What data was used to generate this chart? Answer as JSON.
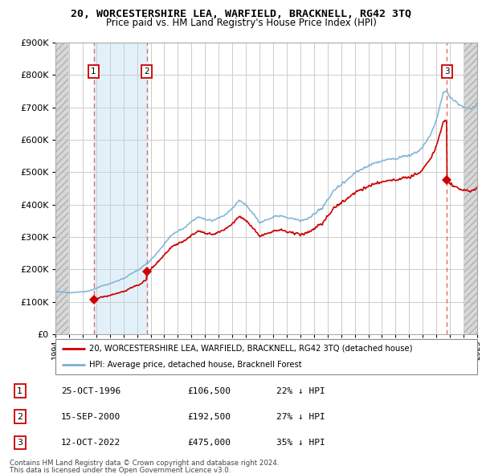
{
  "title": "20, WORCESTERSHIRE LEA, WARFIELD, BRACKNELL, RG42 3TQ",
  "subtitle": "Price paid vs. HM Land Registry's House Price Index (HPI)",
  "xlim": [
    1994.0,
    2025.0
  ],
  "ylim": [
    0,
    900000
  ],
  "yticks": [
    0,
    100000,
    200000,
    300000,
    400000,
    500000,
    600000,
    700000,
    800000,
    900000
  ],
  "sale_dates": [
    1996.81,
    2000.71,
    2022.78
  ],
  "sale_prices": [
    106500,
    192500,
    475000
  ],
  "sale_labels": [
    "1",
    "2",
    "3"
  ],
  "hpi_color": "#7ab0d4",
  "price_color": "#cc0000",
  "dashed_color": "#e05050",
  "legend_line1": "20, WORCESTERSHIRE LEA, WARFIELD, BRACKNELL, RG42 3TQ (detached house)",
  "legend_line2": "HPI: Average price, detached house, Bracknell Forest",
  "transactions": [
    {
      "label": "1",
      "date": "25-OCT-1996",
      "price": "£106,500",
      "hpi": "22% ↓ HPI"
    },
    {
      "label": "2",
      "date": "15-SEP-2000",
      "price": "£192,500",
      "hpi": "27% ↓ HPI"
    },
    {
      "label": "3",
      "date": "12-OCT-2022",
      "price": "£475,000",
      "hpi": "35% ↓ HPI"
    }
  ],
  "footnote1": "Contains HM Land Registry data © Crown copyright and database right 2024.",
  "footnote2": "This data is licensed under the Open Government Licence v3.0.",
  "hpi_anchors": [
    [
      1994.0,
      131000
    ],
    [
      1994.5,
      130000
    ],
    [
      1995.0,
      128000
    ],
    [
      1995.5,
      129000
    ],
    [
      1996.0,
      131000
    ],
    [
      1996.5,
      134000
    ],
    [
      1997.0,
      142000
    ],
    [
      1997.5,
      150000
    ],
    [
      1998.0,
      156000
    ],
    [
      1998.5,
      163000
    ],
    [
      1999.0,
      172000
    ],
    [
      1999.5,
      185000
    ],
    [
      2000.0,
      196000
    ],
    [
      2000.5,
      212000
    ],
    [
      2001.0,
      228000
    ],
    [
      2001.5,
      252000
    ],
    [
      2002.0,
      278000
    ],
    [
      2002.5,
      305000
    ],
    [
      2003.0,
      318000
    ],
    [
      2003.5,
      330000
    ],
    [
      2004.0,
      348000
    ],
    [
      2004.5,
      362000
    ],
    [
      2005.0,
      355000
    ],
    [
      2005.5,
      350000
    ],
    [
      2006.0,
      358000
    ],
    [
      2006.5,
      368000
    ],
    [
      2007.0,
      388000
    ],
    [
      2007.5,
      415000
    ],
    [
      2008.0,
      400000
    ],
    [
      2008.5,
      375000
    ],
    [
      2009.0,
      345000
    ],
    [
      2009.5,
      352000
    ],
    [
      2010.0,
      362000
    ],
    [
      2010.5,
      368000
    ],
    [
      2011.0,
      360000
    ],
    [
      2011.5,
      355000
    ],
    [
      2012.0,
      350000
    ],
    [
      2012.5,
      355000
    ],
    [
      2013.0,
      368000
    ],
    [
      2013.5,
      385000
    ],
    [
      2014.0,
      415000
    ],
    [
      2014.5,
      445000
    ],
    [
      2015.0,
      462000
    ],
    [
      2015.5,
      478000
    ],
    [
      2016.0,
      498000
    ],
    [
      2016.5,
      510000
    ],
    [
      2017.0,
      520000
    ],
    [
      2017.5,
      528000
    ],
    [
      2018.0,
      535000
    ],
    [
      2018.5,
      540000
    ],
    [
      2019.0,
      542000
    ],
    [
      2019.5,
      548000
    ],
    [
      2020.0,
      552000
    ],
    [
      2020.5,
      560000
    ],
    [
      2021.0,
      578000
    ],
    [
      2021.5,
      610000
    ],
    [
      2022.0,
      660000
    ],
    [
      2022.5,
      745000
    ],
    [
      2022.78,
      750000
    ],
    [
      2023.0,
      730000
    ],
    [
      2023.5,
      715000
    ],
    [
      2024.0,
      700000
    ],
    [
      2024.5,
      695000
    ],
    [
      2025.0,
      710000
    ]
  ]
}
